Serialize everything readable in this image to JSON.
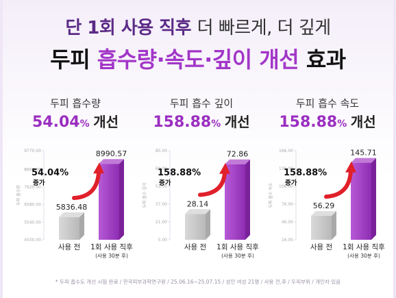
{
  "header": {
    "line1_accent": "단 1회 사용 직후",
    "line1_rest": "더 빠르게, 더 깊게",
    "line2_a": "두피",
    "line2_hl": "흡수량·속도·깊이 개선",
    "line2_b": "효과"
  },
  "colors": {
    "accent": "#9a2fc0",
    "title_purple": "#5b2a86",
    "bar_before": "#c8c8c8",
    "bar_after": "#a646c8",
    "arrow": "#e0202a"
  },
  "chart_data": [
    {
      "type": "bar",
      "title": "두피 흡수량",
      "improvement_num": "54.04",
      "improvement_pct": "%",
      "improvement_word": "개선",
      "callout_num": "54.04%",
      "callout_word": "증가",
      "ylabel": "두피 흡수량",
      "yticks": [
        4500.0,
        5540.0,
        6580.0,
        7620.0,
        8660.0,
        9770.0
      ],
      "ytick_labels": [
        "4500.00",
        "5540.00",
        "6580.00",
        "7620.00",
        "8660.00",
        "9770.00"
      ],
      "ylim": [
        4500.0,
        9770.0
      ],
      "categories": [
        "사용 전",
        "1회 사용 직후"
      ],
      "sub_label": "(사용 30분 후)",
      "values": [
        5836.48,
        8990.57
      ],
      "value_labels": [
        "5836.48",
        "8990.57"
      ]
    },
    {
      "type": "bar",
      "title": "두피 흡수 깊이",
      "improvement_num": "158.88",
      "improvement_pct": "%",
      "improvement_word": "개선",
      "callout_num": "158.88%",
      "callout_word": "증가",
      "ylabel": "두피 흡수 깊이",
      "yticks": [
        5.0,
        21.0,
        37.0,
        53.0,
        69.0,
        85.0
      ],
      "ytick_labels": [
        "5.00",
        "21.00",
        "37.00",
        "53.00",
        "69.00",
        "85.00"
      ],
      "ylim": [
        5.0,
        85.0
      ],
      "categories": [
        "사용 전",
        "1회 사용 직후"
      ],
      "sub_label": "(사용 30분 후)",
      "values": [
        28.14,
        72.86
      ],
      "value_labels": [
        "28.14",
        "72.86"
      ]
    },
    {
      "type": "bar",
      "title": "두피 흡수 속도",
      "improvement_num": "158.88",
      "improvement_pct": "%",
      "improvement_word": "개선",
      "callout_num": "158.88%",
      "callout_word": "증가",
      "ylabel": "두피 흡수 속도",
      "yticks": [
        16.0,
        46.0,
        76.0,
        106.0,
        136.0,
        166.0
      ],
      "ytick_labels": [
        "16.00",
        "46.00",
        "76.00",
        "106.00",
        "136.00",
        "166.00"
      ],
      "ylim": [
        16.0,
        166.0
      ],
      "categories": [
        "사용 전",
        "1회 사용 직후"
      ],
      "sub_label": "(사용 30분 후)",
      "values": [
        56.29,
        145.71
      ],
      "value_labels": [
        "56.29",
        "145.71"
      ]
    }
  ],
  "footnote": "* 두피 흡수도 개선 시험 완료 / 한국피부과학연구원 / 25.06.16~25.07.15 / 성인 여성 21명 / 사용 전,후 / 두피부위 / 개인차 있음"
}
